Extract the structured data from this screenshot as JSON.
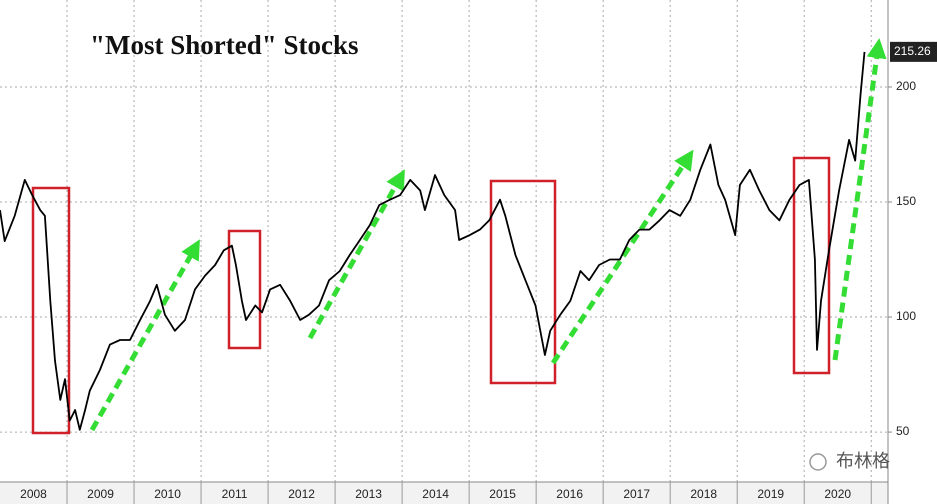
{
  "chart_data": {
    "type": "line",
    "title": "\"Most Shorted\" Stocks",
    "series": [
      {
        "color": "#000000",
        "x": [
          2008.0,
          2008.07,
          2008.22,
          2008.37,
          2008.48,
          2008.6,
          2008.67,
          2008.75,
          2008.82,
          2008.9,
          2008.97,
          2009.04,
          2009.12,
          2009.19,
          2009.27,
          2009.34,
          2009.49,
          2009.64,
          2009.79,
          2009.94,
          2010.09,
          2010.24,
          2010.34,
          2010.46,
          2010.61,
          2010.76,
          2010.91,
          2011.06,
          2011.21,
          2011.34,
          2011.46,
          2011.52,
          2011.61,
          2011.67,
          2011.81,
          2011.91,
          2012.03,
          2012.18,
          2012.33,
          2012.48,
          2012.61,
          2012.76,
          2012.91,
          2013.07,
          2013.22,
          2013.37,
          2013.52,
          2013.66,
          2013.82,
          2013.97,
          2014.12,
          2014.27,
          2014.34,
          2014.49,
          2014.63,
          2014.79,
          2014.85,
          2015.01,
          2015.16,
          2015.3,
          2015.46,
          2015.54,
          2015.69,
          2015.84,
          2015.99,
          2016.13,
          2016.21,
          2016.36,
          2016.51,
          2016.66,
          2016.79,
          2016.94,
          2017.1,
          2017.25,
          2017.39,
          2017.54,
          2017.69,
          2017.84,
          2017.99,
          2018.15,
          2018.3,
          2018.45,
          2018.6,
          2018.72,
          2018.82,
          2018.97,
          2019.04,
          2019.19,
          2019.33,
          2019.48,
          2019.63,
          2019.78,
          2019.93,
          2020.07,
          2020.16,
          2020.19,
          2020.25,
          2020.37,
          2020.52,
          2020.67,
          2020.76,
          2020.84,
          2020.9
        ],
        "values": [
          146.5,
          133,
          144,
          159.6,
          153,
          146.5,
          144,
          107,
          81,
          64,
          73,
          55,
          59.6,
          51,
          59.6,
          68,
          77,
          88,
          90,
          90,
          98.7,
          107,
          114,
          101,
          94,
          98.7,
          112,
          118,
          122.6,
          129,
          131,
          122.6,
          107,
          98.7,
          105,
          102,
          112,
          114,
          107,
          98.7,
          101,
          105,
          116,
          120,
          127,
          133.5,
          140,
          148.7,
          151,
          153,
          159.6,
          155,
          146.5,
          161.7,
          153,
          146.5,
          133.5,
          135.6,
          138,
          142,
          151,
          144,
          127,
          116,
          105,
          83.5,
          94,
          101,
          107,
          120,
          116,
          122.6,
          125,
          125,
          133.5,
          138,
          138,
          142,
          146.5,
          144,
          151,
          164,
          175,
          157.4,
          151,
          135.6,
          157.4,
          164,
          155,
          146.5,
          142,
          151,
          157.4,
          159.6,
          125,
          85.7,
          107,
          129,
          155,
          177,
          168,
          196.5,
          215.26
        ]
      }
    ],
    "last_value": 215.26,
    "xlim": [
      2008,
      2021.25
    ],
    "ylim": [
      28.3,
      237.8
    ],
    "yticks": [
      50,
      100,
      150,
      200
    ],
    "xticks": [
      {
        "value": 2008.5,
        "label": "2008"
      },
      {
        "value": 2009.5,
        "label": "2009"
      },
      {
        "value": 2010.5,
        "label": "2010"
      },
      {
        "value": 2011.5,
        "label": "2011"
      },
      {
        "value": 2012.5,
        "label": "2012"
      },
      {
        "value": 2013.5,
        "label": "2013"
      },
      {
        "value": 2014.5,
        "label": "2014"
      },
      {
        "value": 2015.5,
        "label": "2015"
      },
      {
        "value": 2016.5,
        "label": "2016"
      },
      {
        "value": 2017.5,
        "label": "2017"
      },
      {
        "value": 2018.5,
        "label": "2018"
      },
      {
        "value": 2019.5,
        "label": "2019"
      },
      {
        "value": 2020.5,
        "label": "2020"
      }
    ],
    "xgrid": [
      2009,
      2010,
      2011,
      2012,
      2013,
      2014,
      2015,
      2016,
      2017,
      2018,
      2019,
      2020,
      2021
    ],
    "grid": true,
    "watermark": "布林格"
  }
}
